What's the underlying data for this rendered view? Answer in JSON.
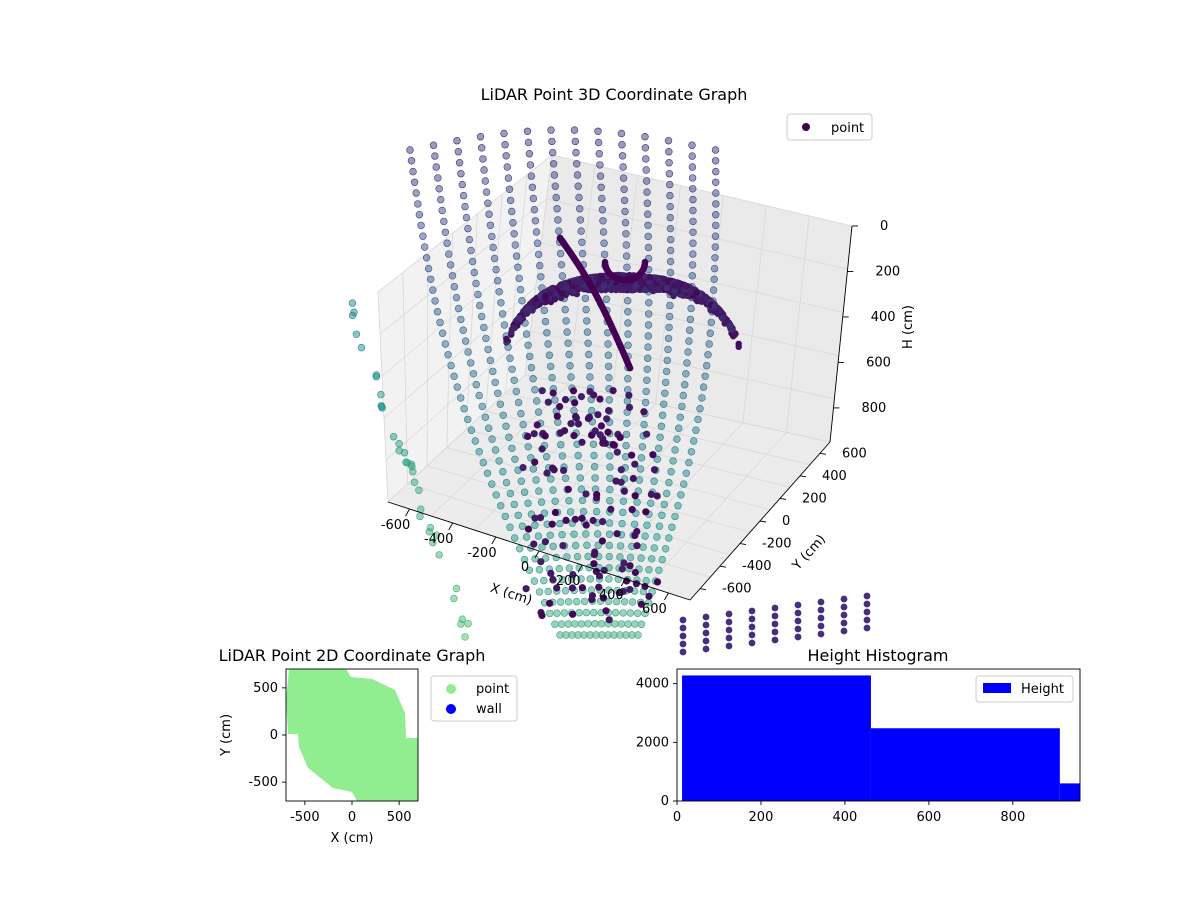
{
  "chart_data": [
    {
      "type": "scatter",
      "title": "LiDAR Point 3D Coordinate Graph",
      "xlabel": "X (cm)",
      "ylabel": "Y (cm)",
      "zlabel": "H (cm)",
      "xlim": [
        -700,
        700
      ],
      "ylim": [
        -700,
        700
      ],
      "zlim": [
        950,
        0
      ],
      "xticks": [
        "-600",
        "-400",
        "-200",
        "0",
        "200",
        "400",
        "600"
      ],
      "yticks": [
        "-600",
        "-400",
        "-200",
        "0",
        "200",
        "400",
        "600"
      ],
      "zticks": [
        "0",
        "200",
        "400",
        "600",
        "800"
      ],
      "legend": {
        "entries": [
          "point"
        ],
        "placement": "top-right"
      },
      "grid": true,
      "colormap": "viridis",
      "series": [
        {
          "name": "point",
          "color": "#440154"
        }
      ]
    },
    {
      "type": "scatter",
      "title": "LiDAR Point 2D Coordinate Graph",
      "xlabel": "X (cm)",
      "ylabel": "Y (cm)",
      "xlim": [
        -700,
        700
      ],
      "ylim": [
        -700,
        700
      ],
      "xticks": [
        "-500",
        "0",
        "500"
      ],
      "yticks": [
        "500",
        "0",
        "-500"
      ],
      "legend": {
        "entries": [
          "point",
          "wall"
        ],
        "placement": "outside-right"
      },
      "series": [
        {
          "name": "point",
          "color": "#90ee90"
        },
        {
          "name": "wall",
          "color": "#0000ff"
        }
      ]
    },
    {
      "type": "bar",
      "title": "Height Histogram",
      "xlim": [
        0,
        960
      ],
      "ylim": [
        0,
        4500
      ],
      "xticks": [
        "0",
        "200",
        "400",
        "600",
        "800"
      ],
      "yticks": [
        "0",
        "2000",
        "4000"
      ],
      "legend": {
        "entries": [
          "Height"
        ],
        "placement": "top-right"
      },
      "color": "#0000ff",
      "series": [
        {
          "name": "Height",
          "bins": [
            [
              12,
              462
            ],
            [
              462,
              912
            ],
            [
              912,
              962
            ]
          ],
          "values": [
            4280,
            2480,
            600
          ]
        }
      ]
    }
  ]
}
